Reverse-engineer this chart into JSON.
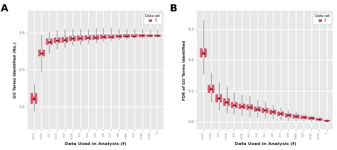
{
  "x_labels": [
    "0.01",
    "0.05",
    "0.1",
    "0.15",
    "0.2",
    "0.25",
    "0.3",
    "0.4",
    "0.5",
    "0.6",
    "0.7",
    "0.8",
    "0.85",
    "0.9",
    "0.95",
    "0.99",
    "1"
  ],
  "x_positions": [
    1,
    2,
    3,
    4,
    5,
    6,
    7,
    8,
    9,
    10,
    11,
    12,
    13,
    14,
    15,
    16,
    17
  ],
  "panel_A": {
    "title": "A",
    "ylabel": "GO Terms Identified (No.)",
    "xlabel": "Data Used in Analysis (f)",
    "ylim": [
      0.14,
      0.46
    ],
    "yticks": [
      0.2,
      0.3,
      0.4
    ],
    "medians": [
      0.223,
      0.345,
      0.375,
      0.38,
      0.381,
      0.385,
      0.386,
      0.387,
      0.388,
      0.39,
      0.39,
      0.391,
      0.392,
      0.392,
      0.393,
      0.393,
      0.393
    ],
    "q1": [
      0.21,
      0.338,
      0.369,
      0.374,
      0.375,
      0.379,
      0.38,
      0.382,
      0.383,
      0.385,
      0.386,
      0.388,
      0.389,
      0.39,
      0.39,
      0.391,
      0.391
    ],
    "q3": [
      0.237,
      0.354,
      0.384,
      0.387,
      0.388,
      0.391,
      0.392,
      0.393,
      0.394,
      0.395,
      0.395,
      0.395,
      0.396,
      0.396,
      0.396,
      0.395,
      0.395
    ],
    "whislo": [
      0.19,
      0.295,
      0.345,
      0.356,
      0.36,
      0.366,
      0.368,
      0.372,
      0.374,
      0.377,
      0.379,
      0.382,
      0.384,
      0.385,
      0.386,
      0.387,
      0.387
    ],
    "whishi": [
      0.265,
      0.395,
      0.405,
      0.408,
      0.41,
      0.413,
      0.413,
      0.413,
      0.414,
      0.414,
      0.414,
      0.413,
      0.412,
      0.412,
      0.412,
      0.41,
      0.41
    ],
    "notch_lo": [
      0.215,
      0.341,
      0.372,
      0.377,
      0.377,
      0.382,
      0.383,
      0.384,
      0.385,
      0.387,
      0.388,
      0.389,
      0.39,
      0.391,
      0.391,
      0.392,
      0.392
    ],
    "notch_hi": [
      0.231,
      0.349,
      0.378,
      0.383,
      0.385,
      0.388,
      0.389,
      0.39,
      0.391,
      0.393,
      0.392,
      0.393,
      0.394,
      0.393,
      0.395,
      0.394,
      0.394
    ],
    "violin_width": [
      0.55,
      0.55,
      0.55,
      0.55,
      0.55,
      0.55,
      0.55,
      0.55,
      0.55,
      0.55,
      0.55,
      0.55,
      0.55,
      0.55,
      0.55,
      0.55,
      0.55
    ]
  },
  "panel_B": {
    "title": "B",
    "ylabel": "FDR of GO Terms Identified",
    "xlabel": "Data Used in Analysis (f)",
    "ylim": [
      -0.025,
      0.36
    ],
    "yticks": [
      0.0,
      0.1,
      0.2,
      0.3
    ],
    "medians": [
      0.223,
      0.106,
      0.075,
      0.063,
      0.053,
      0.049,
      0.046,
      0.04,
      0.036,
      0.031,
      0.026,
      0.021,
      0.017,
      0.014,
      0.011,
      0.007,
      0.002
    ],
    "q1": [
      0.21,
      0.094,
      0.063,
      0.052,
      0.045,
      0.042,
      0.039,
      0.033,
      0.029,
      0.024,
      0.019,
      0.014,
      0.011,
      0.009,
      0.007,
      0.004,
      0.001
    ],
    "q3": [
      0.237,
      0.118,
      0.087,
      0.074,
      0.062,
      0.057,
      0.054,
      0.047,
      0.043,
      0.037,
      0.031,
      0.025,
      0.022,
      0.018,
      0.014,
      0.01,
      0.004
    ],
    "whislo": [
      0.155,
      0.065,
      0.036,
      0.028,
      0.022,
      0.019,
      0.017,
      0.013,
      0.011,
      0.008,
      0.005,
      0.003,
      0.002,
      0.001,
      0.0,
      0.0,
      0.0
    ],
    "whishi": [
      0.33,
      0.16,
      0.13,
      0.112,
      0.097,
      0.087,
      0.082,
      0.071,
      0.065,
      0.054,
      0.047,
      0.037,
      0.031,
      0.026,
      0.021,
      0.016,
      0.008
    ],
    "notch_lo": [
      0.215,
      0.099,
      0.069,
      0.058,
      0.048,
      0.044,
      0.041,
      0.036,
      0.032,
      0.027,
      0.022,
      0.017,
      0.013,
      0.011,
      0.008,
      0.005,
      0.001
    ],
    "notch_hi": [
      0.231,
      0.113,
      0.081,
      0.068,
      0.058,
      0.054,
      0.051,
      0.044,
      0.04,
      0.035,
      0.03,
      0.025,
      0.021,
      0.017,
      0.014,
      0.009,
      0.003
    ],
    "violin_width": [
      0.55,
      0.55,
      0.55,
      0.55,
      0.55,
      0.55,
      0.55,
      0.55,
      0.55,
      0.55,
      0.55,
      0.55,
      0.55,
      0.55,
      0.55,
      0.55,
      0.55
    ]
  },
  "box_color": "#c45065",
  "box_facecolor": "#d96070",
  "whisker_color": "#999999",
  "median_color": "#5a0010",
  "bg_color": "#e8e8e8",
  "grid_color": "#ffffff",
  "legend_color": "#c04060"
}
